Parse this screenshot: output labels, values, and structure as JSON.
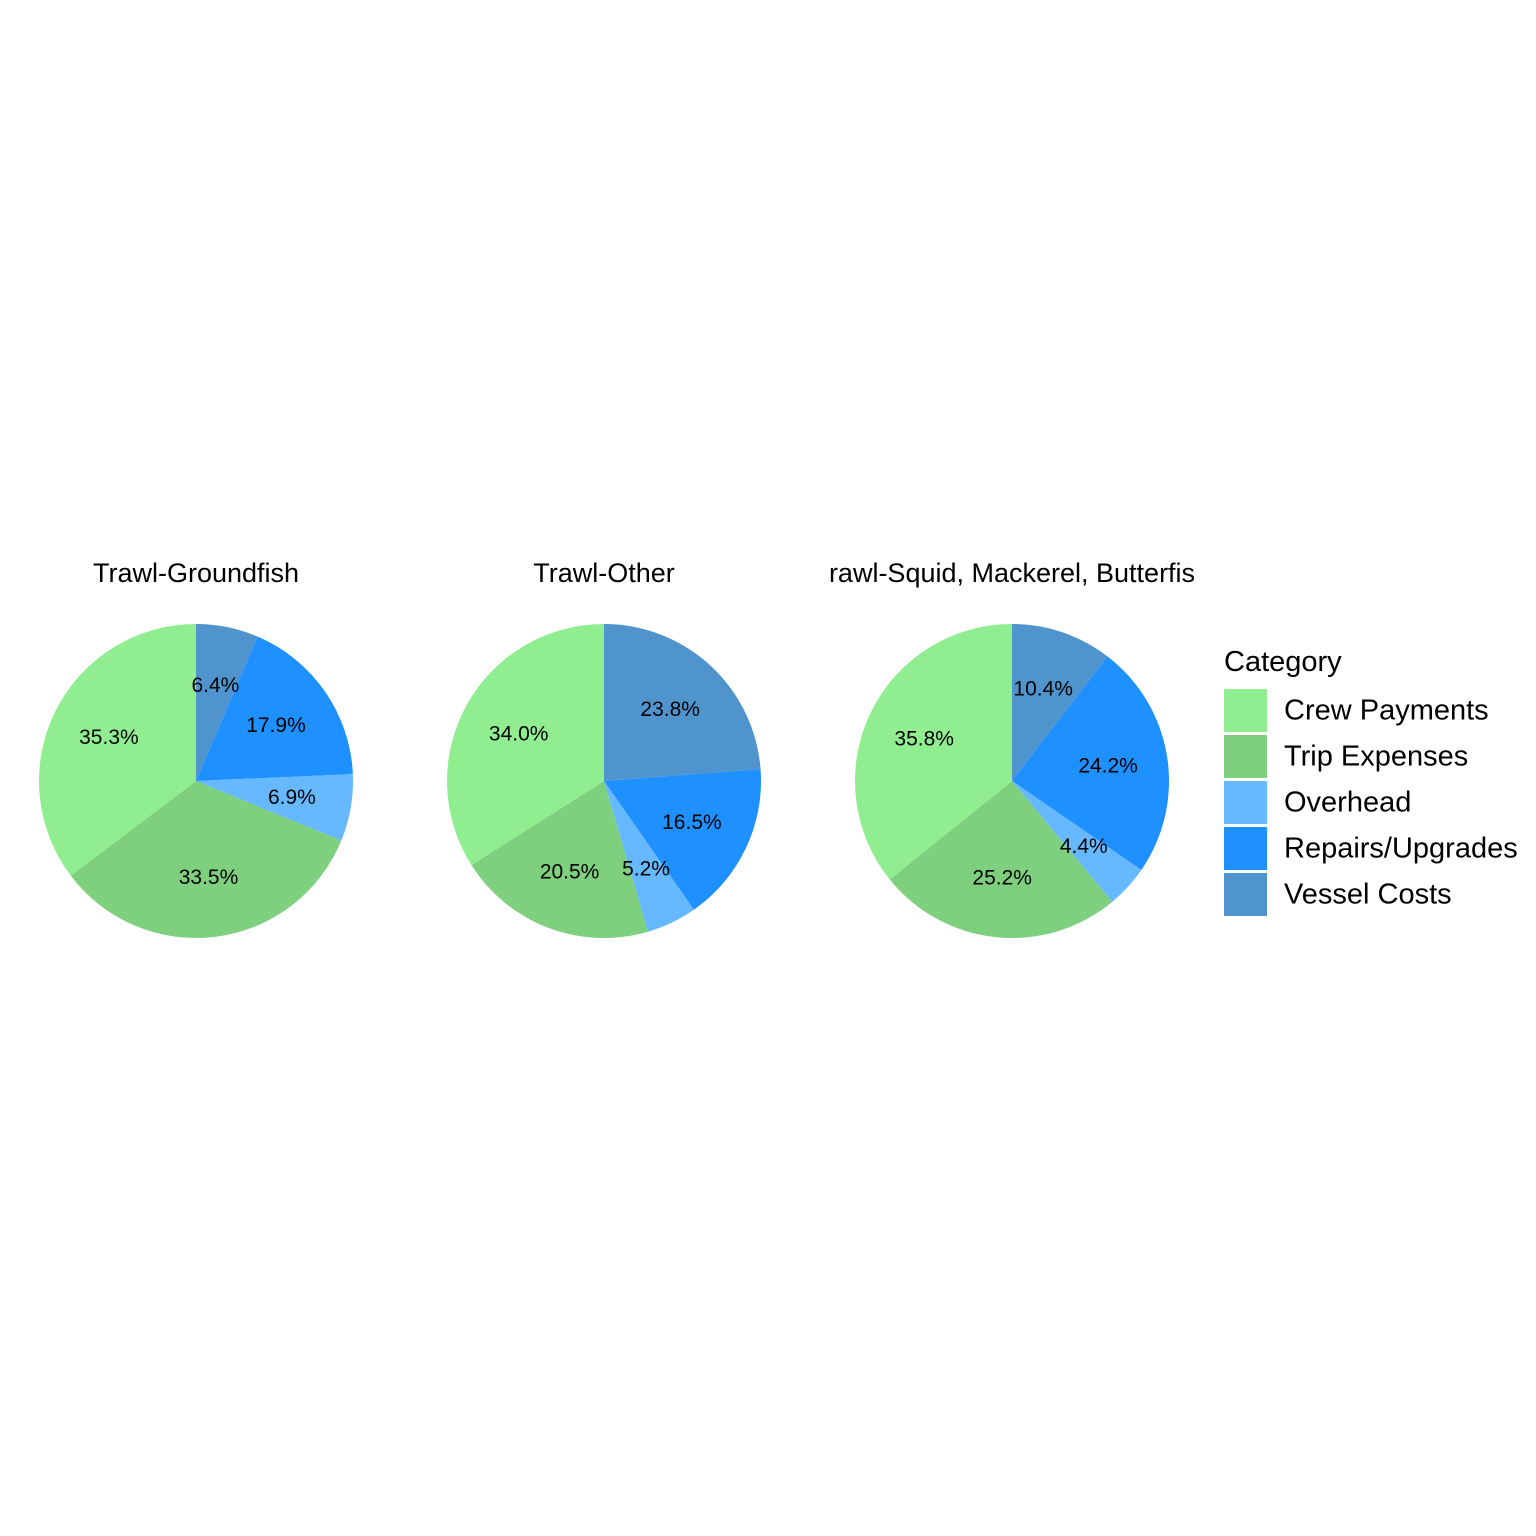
{
  "legend": {
    "title": "Category",
    "entries": [
      {
        "label": "Crew Payments",
        "color": "#90EE90"
      },
      {
        "label": "Trip Expenses",
        "color": "#7ECF7E"
      },
      {
        "label": "Overhead",
        "color": "#66B9FF"
      },
      {
        "label": "Repairs/Upgrades",
        "color": "#1E90FF"
      },
      {
        "label": "Vessel Costs",
        "color": "#4F94CD"
      }
    ]
  },
  "chart_data": [
    {
      "type": "pie",
      "title": "Trawl-Groundfish",
      "categories": [
        "Vessel Costs",
        "Repairs/Upgrades",
        "Overhead",
        "Trip Expenses",
        "Crew Payments"
      ],
      "values": [
        6.4,
        17.9,
        6.9,
        33.5,
        35.3
      ],
      "labels": [
        "6.4%",
        "17.9%",
        "6.9%",
        "33.5%",
        "35.3%"
      ]
    },
    {
      "type": "pie",
      "title": "Trawl-Other",
      "categories": [
        "Vessel Costs",
        "Repairs/Upgrades",
        "Overhead",
        "Trip Expenses",
        "Crew Payments"
      ],
      "values": [
        23.8,
        16.5,
        5.2,
        20.5,
        34.0
      ],
      "labels": [
        "23.8%",
        "16.5%",
        "5.2%",
        "20.5%",
        "34.0%"
      ]
    },
    {
      "type": "pie",
      "title": "rawl-Squid, Mackerel, Butterfis",
      "categories": [
        "Vessel Costs",
        "Repairs/Upgrades",
        "Overhead",
        "Trip Expenses",
        "Crew Payments"
      ],
      "values": [
        10.4,
        24.2,
        4.4,
        25.2,
        35.8
      ],
      "labels": [
        "10.4%",
        "24.2%",
        "4.4%",
        "25.2%",
        "35.8%"
      ]
    }
  ]
}
